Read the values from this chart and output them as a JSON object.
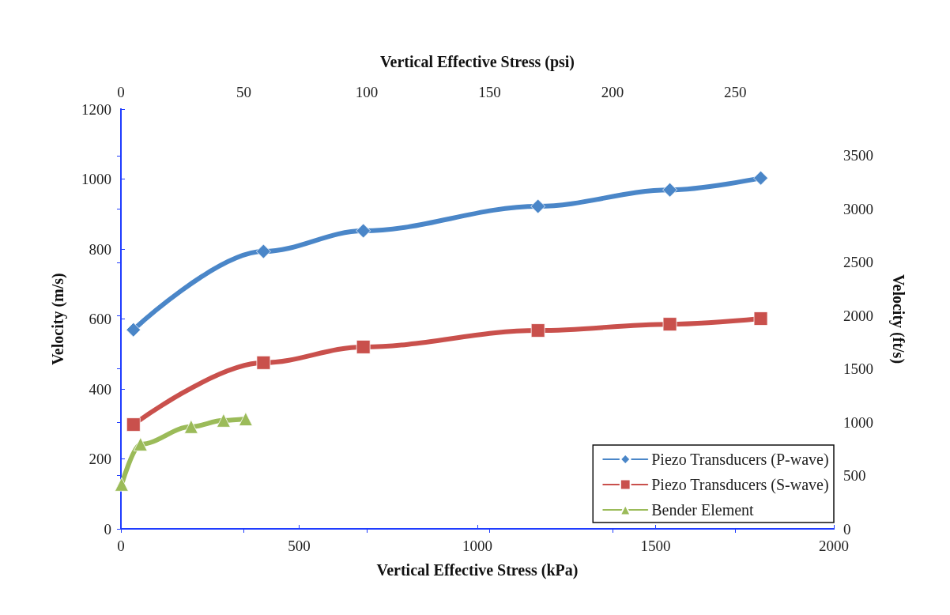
{
  "chart_data": {
    "type": "line",
    "xlabel": "Vertical Effective Stress (kPa)",
    "ylabel": "Velocity (m/s)",
    "y2label": "Velocity (ft/s)",
    "x2label": "Vertical Effective Stress (psi)",
    "xlim": [
      0,
      2000
    ],
    "xticks": [
      0,
      500,
      1000,
      1500,
      2000
    ],
    "ylim": [
      0,
      1200
    ],
    "yticks": [
      0,
      200,
      400,
      600,
      800,
      1000,
      1200
    ],
    "x2lim": [
      0,
      290.08
    ],
    "x2ticks": [
      0,
      50,
      100,
      150,
      200,
      250
    ],
    "y2lim": [
      0,
      3937
    ],
    "y2ticks": [
      0,
      500,
      1000,
      1500,
      2000,
      2500,
      3000,
      3500
    ],
    "grid": false,
    "legend": "bottom right",
    "line_style": "solid",
    "series": [
      {
        "name": "Piezo Transducers (P-wave)",
        "color": "#4a86c8",
        "marker": "diamond",
        "x": [
          35,
          400,
          680,
          1170,
          1540,
          1795
        ],
        "values": [
          569,
          793,
          852,
          922,
          969,
          1003
        ]
      },
      {
        "name": "Piezo Transducers (S-wave)",
        "color": "#c9504c",
        "marker": "square",
        "x": [
          35,
          400,
          680,
          1170,
          1540,
          1795
        ],
        "values": [
          298,
          475,
          520,
          567,
          585,
          601
        ]
      },
      {
        "name": "Bender Element",
        "color": "#9bbb59",
        "marker": "triangle",
        "x": [
          2,
          55,
          197,
          288,
          350
        ],
        "values": [
          127,
          242,
          292,
          310,
          314
        ]
      }
    ]
  }
}
